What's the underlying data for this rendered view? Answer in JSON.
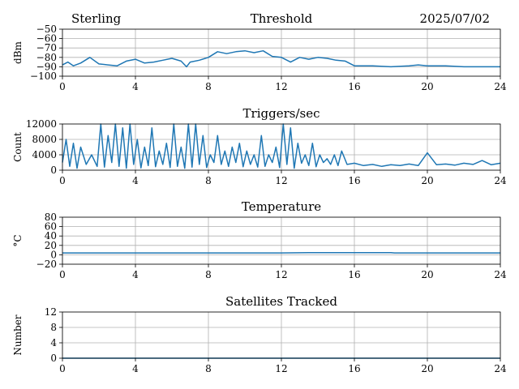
{
  "header": {
    "station": "Sterling",
    "date": "2025/07/02"
  },
  "colors": {
    "series": "#1f77b4",
    "grid": "#b0b0b0"
  },
  "chart_data": [
    {
      "type": "line",
      "title": "Threshold",
      "ylabel": "dBm",
      "xlabel": "",
      "xlim": [
        0,
        24
      ],
      "ylim": [
        -100,
        -50
      ],
      "xticks": [
        0,
        4,
        8,
        12,
        16,
        20,
        24
      ],
      "yticks": [
        -100,
        -90,
        -80,
        -70,
        -60,
        -50
      ],
      "ytick_labels": [
        "−100",
        "−90",
        "−80",
        "−70",
        "−60",
        "−50"
      ],
      "grid": true,
      "series": [
        {
          "x": [
            0,
            0.3,
            0.6,
            1.0,
            1.5,
            2.0,
            2.5,
            3.0,
            3.5,
            4.0,
            4.5,
            5.0,
            5.5,
            6.0,
            6.5,
            6.8,
            7.0,
            7.5,
            8.0,
            8.5,
            9.0,
            9.5,
            10.0,
            10.5,
            11.0,
            11.5,
            12.0,
            12.5,
            13.0,
            13.5,
            14.0,
            14.5,
            15.0,
            15.5,
            16.0,
            17.0,
            18.0,
            19.0,
            19.5,
            20.0,
            21.0,
            22.0,
            23.0,
            24.0
          ],
          "y": [
            -88,
            -85,
            -89,
            -86,
            -80,
            -87,
            -88,
            -89,
            -84,
            -82,
            -86,
            -85,
            -83,
            -81,
            -84,
            -90,
            -85,
            -83,
            -80,
            -74,
            -76,
            -74,
            -73,
            -75,
            -73,
            -79,
            -80,
            -85,
            -80,
            -82,
            -80,
            -81,
            -83,
            -84,
            -89,
            -89,
            -90,
            -89,
            -88,
            -89,
            -89,
            -90,
            -90,
            -90
          ]
        }
      ]
    },
    {
      "type": "line",
      "title": "Triggers/sec",
      "ylabel": "Count",
      "xlabel": "",
      "xlim": [
        0,
        24
      ],
      "ylim": [
        0,
        12000
      ],
      "xticks": [
        0,
        4,
        8,
        12,
        16,
        20,
        24
      ],
      "yticks": [
        0,
        4000,
        8000,
        12000
      ],
      "ytick_labels": [
        "0",
        "4000",
        "8000",
        "12000"
      ],
      "grid": true,
      "series": [
        {
          "x": [
            0,
            0.2,
            0.4,
            0.6,
            0.8,
            1.0,
            1.3,
            1.6,
            1.9,
            2.1,
            2.3,
            2.5,
            2.7,
            2.9,
            3.1,
            3.3,
            3.5,
            3.7,
            3.9,
            4.1,
            4.3,
            4.5,
            4.7,
            4.9,
            5.1,
            5.3,
            5.5,
            5.7,
            5.9,
            6.1,
            6.3,
            6.5,
            6.7,
            6.9,
            7.1,
            7.3,
            7.5,
            7.7,
            7.9,
            8.1,
            8.3,
            8.5,
            8.7,
            8.9,
            9.1,
            9.3,
            9.5,
            9.7,
            9.9,
            10.1,
            10.3,
            10.5,
            10.7,
            10.9,
            11.1,
            11.3,
            11.5,
            11.7,
            11.9,
            12.1,
            12.3,
            12.5,
            12.7,
            12.9,
            13.1,
            13.3,
            13.5,
            13.7,
            13.9,
            14.1,
            14.3,
            14.5,
            14.7,
            14.9,
            15.1,
            15.3,
            15.6,
            16.0,
            16.5,
            17.0,
            17.5,
            18.0,
            18.5,
            19.0,
            19.5,
            20.0,
            20.5,
            21.0,
            21.5,
            22.0,
            22.5,
            23.0,
            23.5,
            24.0
          ],
          "y": [
            2000,
            8000,
            1000,
            7000,
            500,
            6000,
            1500,
            4000,
            1000,
            12000,
            800,
            9000,
            2000,
            12000,
            1000,
            11000,
            500,
            12000,
            1500,
            8000,
            600,
            6000,
            1200,
            11000,
            900,
            5000,
            1500,
            7000,
            700,
            12000,
            1000,
            6000,
            500,
            12000,
            800,
            12000,
            1500,
            9000,
            700,
            4000,
            2000,
            9000,
            1500,
            5000,
            1000,
            6000,
            2000,
            7000,
            900,
            5000,
            1500,
            4000,
            800,
            9000,
            1000,
            4000,
            2000,
            6000,
            700,
            12000,
            1500,
            11000,
            500,
            7000,
            1800,
            4000,
            1200,
            7000,
            900,
            4000,
            2000,
            3000,
            1500,
            4000,
            1200,
            5000,
            1500,
            1800,
            1200,
            1500,
            1000,
            1400,
            1200,
            1600,
            1200,
            4500,
            1400,
            1600,
            1300,
            1800,
            1500,
            2500,
            1400,
            1800
          ]
        }
      ]
    },
    {
      "type": "line",
      "title": "Temperature",
      "ylabel": "°C",
      "xlabel": "",
      "xlim": [
        0,
        24
      ],
      "ylim": [
        -20,
        80
      ],
      "xticks": [
        0,
        4,
        8,
        12,
        16,
        20,
        24
      ],
      "yticks": [
        -20,
        0,
        20,
        40,
        60,
        80
      ],
      "ytick_labels": [
        "−20",
        "0",
        "20",
        "40",
        "60",
        "80"
      ],
      "grid": true,
      "series": [
        {
          "x": [
            0,
            4,
            8,
            12,
            13.5,
            15,
            16,
            17,
            18,
            18.2,
            20,
            24
          ],
          "y": [
            4,
            4,
            4,
            4,
            4.5,
            4.7,
            4.5,
            4.5,
            4.5,
            4,
            4,
            4
          ]
        }
      ]
    },
    {
      "type": "line",
      "title": "Satellites Tracked",
      "ylabel": "Number",
      "xlabel": "",
      "xlim": [
        0,
        24
      ],
      "ylim": [
        0,
        12
      ],
      "xticks": [
        0,
        4,
        8,
        12,
        16,
        20,
        24
      ],
      "yticks": [
        0,
        4,
        8,
        12
      ],
      "ytick_labels": [
        "0",
        "4",
        "8",
        "12"
      ],
      "grid": true,
      "series": [
        {
          "x": [
            0,
            24
          ],
          "y": [
            0,
            0
          ]
        }
      ]
    }
  ]
}
